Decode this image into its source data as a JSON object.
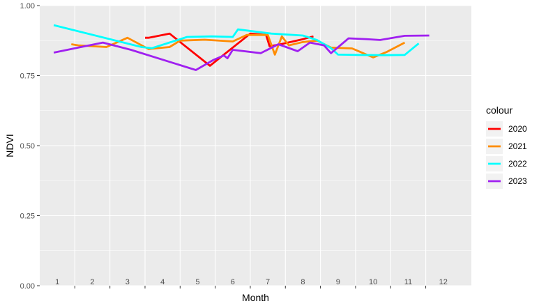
{
  "chart_data": {
    "type": "line",
    "xlabel": "Month",
    "ylabel": "NDVI",
    "xlim": [
      0.5,
      12.8
    ],
    "ylim": [
      0,
      1
    ],
    "grid": true,
    "y_ticks": [
      {
        "value": 0,
        "label": "0.00"
      },
      {
        "value": 0.25,
        "label": "0.25"
      },
      {
        "value": 0.5,
        "label": "0.50"
      },
      {
        "value": 0.75,
        "label": "0.75"
      },
      {
        "value": 1,
        "label": "1.00"
      }
    ],
    "x_month_labels": [
      {
        "value": 1,
        "label": "1"
      },
      {
        "value": 2,
        "label": "2"
      },
      {
        "value": 3,
        "label": "3"
      },
      {
        "value": 4,
        "label": "4"
      },
      {
        "value": 5,
        "label": "5"
      },
      {
        "value": 6,
        "label": "6"
      },
      {
        "value": 7,
        "label": "7"
      },
      {
        "value": 8,
        "label": "8"
      },
      {
        "value": 9,
        "label": "9"
      },
      {
        "value": 10,
        "label": "10"
      },
      {
        "value": 11,
        "label": "11"
      },
      {
        "value": 12,
        "label": "12"
      }
    ],
    "x_tick_marks": [
      1.5,
      2.5,
      3.5,
      4.5,
      5.5,
      6.5,
      7.5,
      8.5,
      9.5,
      10.5,
      11.5
    ],
    "legend": {
      "title": "colour",
      "placement": "right"
    },
    "series": [
      {
        "name": "2020",
        "color": "#ff0000",
        "points": [
          [
            3.5,
            0.885
          ],
          [
            3.6,
            0.885
          ],
          [
            4.2,
            0.9
          ],
          [
            4.6,
            0.86
          ],
          [
            5.35,
            0.785
          ],
          [
            5.5,
            0.8
          ],
          [
            6.5,
            0.9
          ],
          [
            6.95,
            0.895
          ],
          [
            7.05,
            0.855
          ],
          [
            7.3,
            0.86
          ],
          [
            8,
            0.88
          ],
          [
            8.3,
            0.89
          ]
        ]
      },
      {
        "name": "2021",
        "color": "#ff8c00",
        "points": [
          [
            1.4,
            0.862
          ],
          [
            1.6,
            0.858
          ],
          [
            2.4,
            0.852
          ],
          [
            3.0,
            0.885
          ],
          [
            3.6,
            0.845
          ],
          [
            4.2,
            0.852
          ],
          [
            4.5,
            0.875
          ],
          [
            5.2,
            0.878
          ],
          [
            6.0,
            0.872
          ],
          [
            6.4,
            0.895
          ],
          [
            7.0,
            0.895
          ],
          [
            7.2,
            0.825
          ],
          [
            7.4,
            0.89
          ],
          [
            7.6,
            0.858
          ],
          [
            8.0,
            0.87
          ],
          [
            8.4,
            0.875
          ],
          [
            8.8,
            0.85
          ],
          [
            9.4,
            0.847
          ],
          [
            10.0,
            0.815
          ],
          [
            10.4,
            0.835
          ],
          [
            10.9,
            0.868
          ]
        ]
      },
      {
        "name": "2022",
        "color": "#00ffff",
        "points": [
          [
            0.9,
            0.93
          ],
          [
            3.4,
            0.852
          ],
          [
            3.7,
            0.848
          ],
          [
            4.7,
            0.888
          ],
          [
            5.4,
            0.89
          ],
          [
            6.0,
            0.888
          ],
          [
            6.15,
            0.915
          ],
          [
            7.1,
            0.9
          ],
          [
            8.0,
            0.893
          ],
          [
            8.4,
            0.877
          ],
          [
            8.8,
            0.848
          ],
          [
            9.0,
            0.825
          ],
          [
            9.5,
            0.824
          ],
          [
            10.3,
            0.823
          ],
          [
            10.9,
            0.824
          ],
          [
            11.3,
            0.865
          ]
        ]
      },
      {
        "name": "2023",
        "color": "#a020f0",
        "points": [
          [
            0.9,
            0.832
          ],
          [
            2.3,
            0.868
          ],
          [
            3.1,
            0.842
          ],
          [
            4.95,
            0.77
          ],
          [
            5.45,
            0.806
          ],
          [
            5.75,
            0.822
          ],
          [
            5.85,
            0.812
          ],
          [
            6.0,
            0.842
          ],
          [
            6.8,
            0.83
          ],
          [
            7.3,
            0.862
          ],
          [
            7.85,
            0.837
          ],
          [
            8.2,
            0.868
          ],
          [
            8.6,
            0.858
          ],
          [
            8.8,
            0.83
          ],
          [
            9.3,
            0.883
          ],
          [
            9.8,
            0.88
          ],
          [
            10.2,
            0.877
          ],
          [
            10.9,
            0.892
          ],
          [
            11.6,
            0.893
          ]
        ]
      }
    ]
  }
}
